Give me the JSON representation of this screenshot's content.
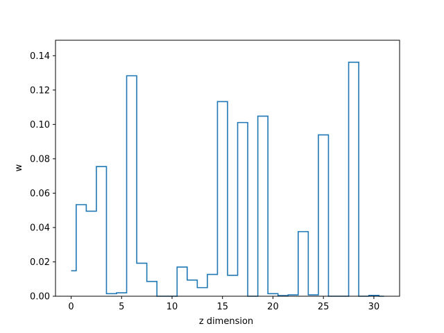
{
  "chart_data": {
    "type": "step",
    "title": "",
    "xlabel": "z dimension",
    "ylabel": "w",
    "xlim": [
      -1.55,
      32.55
    ],
    "ylim": [
      0.0,
      0.149
    ],
    "x_ticks": [
      0,
      5,
      10,
      15,
      20,
      25,
      30
    ],
    "x_tick_labels": [
      "0",
      "5",
      "10",
      "15",
      "20",
      "25",
      "30"
    ],
    "y_ticks": [
      0.0,
      0.02,
      0.04,
      0.06,
      0.08,
      0.1,
      0.12,
      0.14
    ],
    "y_tick_labels": [
      "0.00",
      "0.02",
      "0.04",
      "0.06",
      "0.08",
      "0.10",
      "0.12",
      "0.14"
    ],
    "grid": false,
    "line_color": "#1f77b4",
    "series": [
      {
        "x": [
          0,
          1,
          2,
          3,
          4,
          5,
          6,
          7,
          8,
          9,
          10,
          11,
          12,
          13,
          14,
          15,
          16,
          17,
          18,
          19,
          20,
          21,
          22,
          23,
          24,
          25,
          26,
          27,
          28,
          29,
          30,
          31
        ],
        "values": [
          0.0148,
          0.0533,
          0.0495,
          0.0755,
          0.0015,
          0.002,
          0.1283,
          0.0192,
          0.0086,
          0.0,
          0.0,
          0.017,
          0.0094,
          0.005,
          0.0127,
          0.1133,
          0.0122,
          0.1011,
          0.0,
          0.1048,
          0.0015,
          0.0004,
          0.0008,
          0.0376,
          0.0008,
          0.0939,
          0.0,
          0.0,
          0.1362,
          0.0,
          0.0005,
          0.0
        ]
      }
    ]
  }
}
